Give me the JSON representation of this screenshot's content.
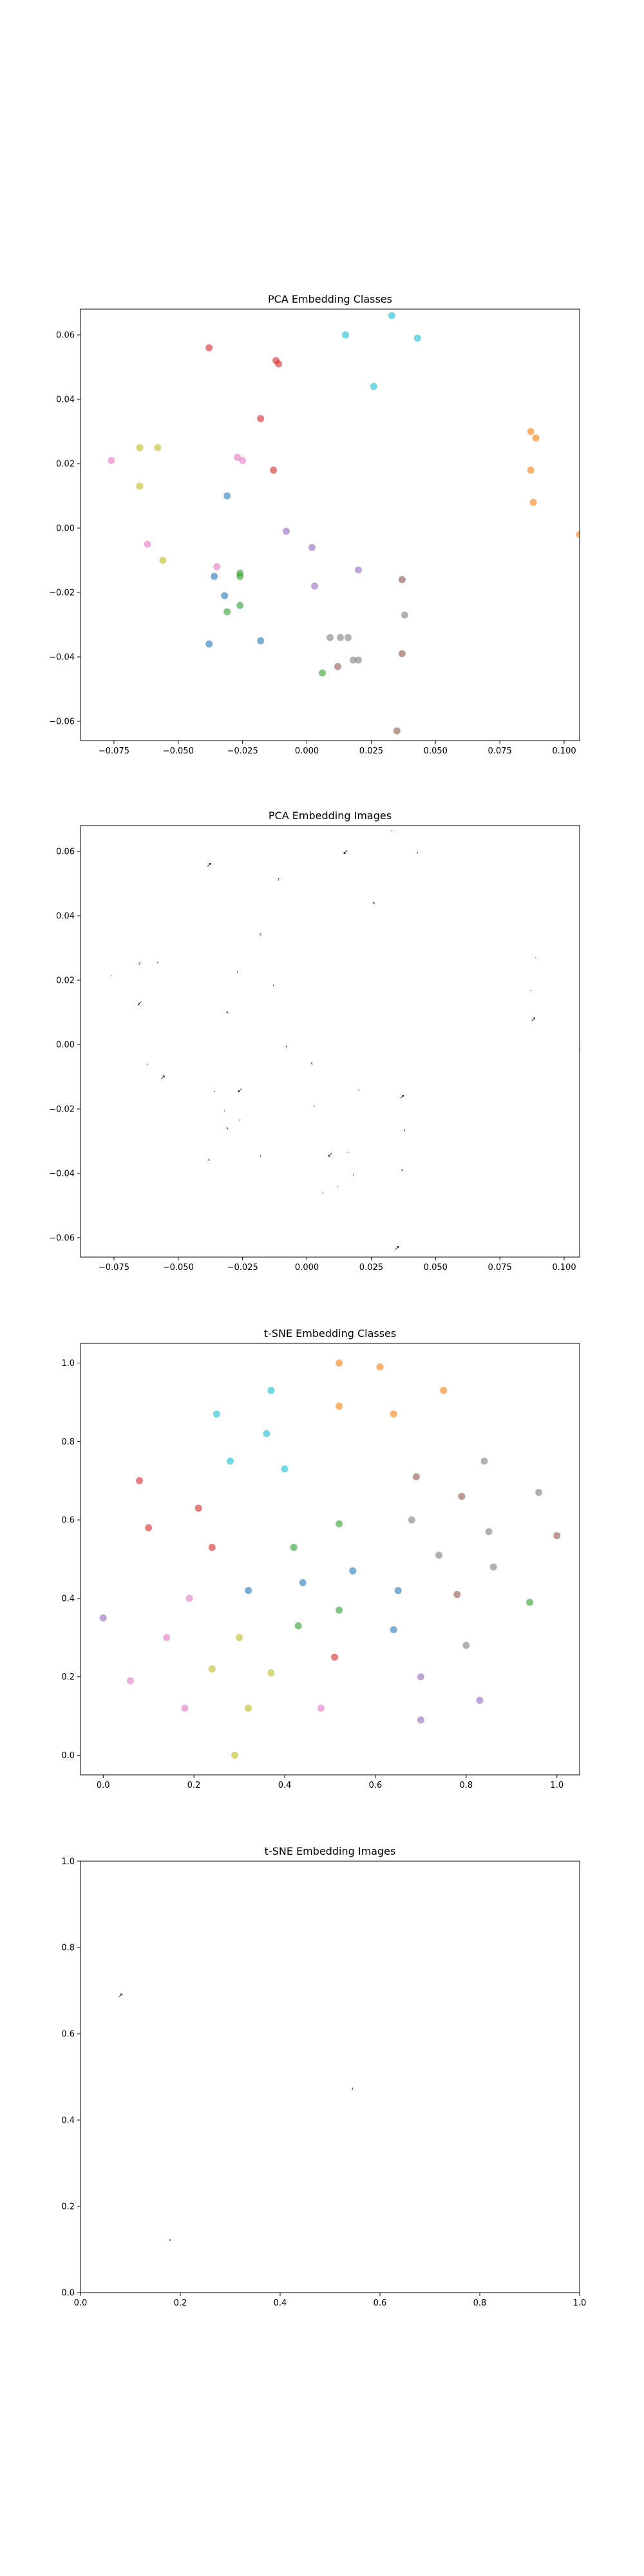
{
  "chart_data": [
    {
      "type": "scatter",
      "title": "PCA Embedding Classes",
      "xlim": [
        -0.088,
        0.106
      ],
      "ylim": [
        -0.066,
        0.068
      ],
      "xticks": [
        -0.075,
        -0.05,
        -0.025,
        0.0,
        0.025,
        0.05,
        0.075,
        0.1
      ],
      "xtick_labels": [
        "−0.075",
        "−0.050",
        "−0.025",
        "0.000",
        "0.025",
        "0.050",
        "0.075",
        "0.100"
      ],
      "yticks": [
        -0.06,
        -0.04,
        -0.02,
        0.0,
        0.02,
        0.04,
        0.06
      ],
      "ytick_labels": [
        "−0.06",
        "−0.04",
        "−0.02",
        "0.00",
        "0.02",
        "0.04",
        "0.06"
      ],
      "grid": false,
      "points": [
        {
          "x": -0.038,
          "y": 0.056,
          "color": "#d62728"
        },
        {
          "x": -0.012,
          "y": 0.052,
          "color": "#d62728"
        },
        {
          "x": -0.011,
          "y": 0.051,
          "color": "#d62728"
        },
        {
          "x": -0.018,
          "y": 0.034,
          "color": "#d62728"
        },
        {
          "x": -0.013,
          "y": 0.018,
          "color": "#d62728"
        },
        {
          "x": 0.015,
          "y": 0.06,
          "color": "#17becf"
        },
        {
          "x": 0.033,
          "y": 0.066,
          "color": "#17becf"
        },
        {
          "x": 0.043,
          "y": 0.059,
          "color": "#17becf"
        },
        {
          "x": 0.026,
          "y": 0.044,
          "color": "#17becf"
        },
        {
          "x": 0.087,
          "y": 0.03,
          "color": "#ff7f0e"
        },
        {
          "x": 0.089,
          "y": 0.028,
          "color": "#ff7f0e"
        },
        {
          "x": 0.087,
          "y": 0.018,
          "color": "#ff7f0e"
        },
        {
          "x": 0.088,
          "y": 0.008,
          "color": "#ff7f0e"
        },
        {
          "x": 0.106,
          "y": -0.002,
          "color": "#ff7f0e"
        },
        {
          "x": -0.065,
          "y": 0.025,
          "color": "#bcbd22"
        },
        {
          "x": -0.058,
          "y": 0.025,
          "color": "#bcbd22"
        },
        {
          "x": -0.065,
          "y": 0.013,
          "color": "#bcbd22"
        },
        {
          "x": -0.056,
          "y": -0.01,
          "color": "#bcbd22"
        },
        {
          "x": -0.076,
          "y": 0.021,
          "color": "#e377c2"
        },
        {
          "x": -0.027,
          "y": 0.022,
          "color": "#e377c2"
        },
        {
          "x": -0.025,
          "y": 0.021,
          "color": "#e377c2"
        },
        {
          "x": -0.062,
          "y": -0.005,
          "color": "#e377c2"
        },
        {
          "x": -0.035,
          "y": -0.012,
          "color": "#e377c2"
        },
        {
          "x": -0.031,
          "y": 0.01,
          "color": "#1f77b4"
        },
        {
          "x": -0.036,
          "y": -0.015,
          "color": "#1f77b4"
        },
        {
          "x": -0.032,
          "y": -0.021,
          "color": "#1f77b4"
        },
        {
          "x": -0.038,
          "y": -0.036,
          "color": "#1f77b4"
        },
        {
          "x": -0.018,
          "y": -0.035,
          "color": "#1f77b4"
        },
        {
          "x": -0.026,
          "y": -0.014,
          "color": "#2ca02c"
        },
        {
          "x": -0.026,
          "y": -0.015,
          "color": "#2ca02c"
        },
        {
          "x": -0.031,
          "y": -0.026,
          "color": "#2ca02c"
        },
        {
          "x": -0.026,
          "y": -0.024,
          "color": "#2ca02c"
        },
        {
          "x": 0.006,
          "y": -0.045,
          "color": "#2ca02c"
        },
        {
          "x": -0.008,
          "y": -0.001,
          "color": "#9467bd"
        },
        {
          "x": 0.002,
          "y": -0.006,
          "color": "#9467bd"
        },
        {
          "x": 0.003,
          "y": -0.018,
          "color": "#9467bd"
        },
        {
          "x": 0.02,
          "y": -0.013,
          "color": "#9467bd"
        },
        {
          "x": 0.037,
          "y": -0.016,
          "color": "#8c564b"
        },
        {
          "x": 0.037,
          "y": -0.039,
          "color": "#8c564b"
        },
        {
          "x": 0.012,
          "y": -0.043,
          "color": "#8c564b"
        },
        {
          "x": 0.035,
          "y": -0.063,
          "color": "#8c564b"
        },
        {
          "x": 0.009,
          "y": -0.034,
          "color": "#7f7f7f"
        },
        {
          "x": 0.013,
          "y": -0.034,
          "color": "#7f7f7f"
        },
        {
          "x": 0.016,
          "y": -0.034,
          "color": "#7f7f7f"
        },
        {
          "x": 0.018,
          "y": -0.041,
          "color": "#7f7f7f"
        },
        {
          "x": 0.02,
          "y": -0.041,
          "color": "#7f7f7f"
        },
        {
          "x": 0.038,
          "y": -0.027,
          "color": "#7f7f7f"
        }
      ]
    },
    {
      "type": "scatter",
      "title": "PCA Embedding Images",
      "xlim": [
        -0.088,
        0.106
      ],
      "ylim": [
        -0.066,
        0.068
      ],
      "xticks": [
        -0.075,
        -0.05,
        -0.025,
        0.0,
        0.025,
        0.05,
        0.075,
        0.1
      ],
      "xtick_labels": [
        "−0.075",
        "−0.050",
        "−0.025",
        "0.000",
        "0.025",
        "0.050",
        "0.075",
        "0.100"
      ],
      "yticks": [
        -0.06,
        -0.04,
        -0.02,
        0.0,
        0.02,
        0.04,
        0.06
      ],
      "ytick_labels": [
        "−0.06",
        "−0.04",
        "−0.02",
        "0.00",
        "0.02",
        "0.04",
        "0.06"
      ],
      "grid": false,
      "points": [
        {
          "x": -0.038,
          "y": 0.056
        },
        {
          "x": -0.011,
          "y": 0.051
        },
        {
          "x": -0.018,
          "y": 0.034
        },
        {
          "x": -0.013,
          "y": 0.018
        },
        {
          "x": 0.015,
          "y": 0.06
        },
        {
          "x": 0.033,
          "y": 0.066
        },
        {
          "x": 0.043,
          "y": 0.059
        },
        {
          "x": 0.026,
          "y": 0.044
        },
        {
          "x": 0.089,
          "y": 0.028
        },
        {
          "x": 0.087,
          "y": 0.018
        },
        {
          "x": 0.088,
          "y": 0.008
        },
        {
          "x": 0.106,
          "y": -0.002
        },
        {
          "x": -0.065,
          "y": 0.025
        },
        {
          "x": -0.058,
          "y": 0.025
        },
        {
          "x": -0.065,
          "y": 0.013
        },
        {
          "x": -0.076,
          "y": 0.021
        },
        {
          "x": -0.027,
          "y": 0.022
        },
        {
          "x": -0.031,
          "y": 0.01
        },
        {
          "x": -0.088,
          "y": 0.0
        },
        {
          "x": -0.062,
          "y": -0.005
        },
        {
          "x": -0.056,
          "y": -0.01
        },
        {
          "x": -0.008,
          "y": -0.001
        },
        {
          "x": 0.002,
          "y": -0.006
        },
        {
          "x": -0.036,
          "y": -0.015
        },
        {
          "x": -0.026,
          "y": -0.014
        },
        {
          "x": -0.032,
          "y": -0.021
        },
        {
          "x": -0.026,
          "y": -0.024
        },
        {
          "x": -0.031,
          "y": -0.026
        },
        {
          "x": 0.003,
          "y": -0.018
        },
        {
          "x": 0.02,
          "y": -0.013
        },
        {
          "x": 0.037,
          "y": -0.016
        },
        {
          "x": 0.038,
          "y": -0.027
        },
        {
          "x": -0.038,
          "y": -0.036
        },
        {
          "x": -0.018,
          "y": -0.035
        },
        {
          "x": 0.009,
          "y": -0.034
        },
        {
          "x": 0.016,
          "y": -0.034
        },
        {
          "x": 0.018,
          "y": -0.041
        },
        {
          "x": 0.037,
          "y": -0.039
        },
        {
          "x": 0.012,
          "y": -0.043
        },
        {
          "x": 0.006,
          "y": -0.045
        },
        {
          "x": 0.035,
          "y": -0.063
        }
      ]
    },
    {
      "type": "scatter",
      "title": "t-SNE Embedding Classes",
      "xlim": [
        -0.05,
        1.05
      ],
      "ylim": [
        -0.05,
        1.05
      ],
      "xticks": [
        0.0,
        0.2,
        0.4,
        0.6,
        0.8,
        1.0
      ],
      "xtick_labels": [
        "0.0",
        "0.2",
        "0.4",
        "0.6",
        "0.8",
        "1.0"
      ],
      "yticks": [
        0.0,
        0.2,
        0.4,
        0.6,
        0.8,
        1.0
      ],
      "ytick_labels": [
        "0.0",
        "0.2",
        "0.4",
        "0.6",
        "0.8",
        "1.0"
      ],
      "grid": false,
      "points": [
        {
          "x": 0.52,
          "y": 1.0,
          "color": "#ff7f0e"
        },
        {
          "x": 0.61,
          "y": 0.99,
          "color": "#ff7f0e"
        },
        {
          "x": 0.75,
          "y": 0.93,
          "color": "#ff7f0e"
        },
        {
          "x": 0.52,
          "y": 0.89,
          "color": "#ff7f0e"
        },
        {
          "x": 0.64,
          "y": 0.87,
          "color": "#ff7f0e"
        },
        {
          "x": 0.25,
          "y": 0.87,
          "color": "#17becf"
        },
        {
          "x": 0.37,
          "y": 0.93,
          "color": "#17becf"
        },
        {
          "x": 0.36,
          "y": 0.82,
          "color": "#17becf"
        },
        {
          "x": 0.28,
          "y": 0.75,
          "color": "#17becf"
        },
        {
          "x": 0.4,
          "y": 0.73,
          "color": "#17becf"
        },
        {
          "x": 0.08,
          "y": 0.7,
          "color": "#d62728"
        },
        {
          "x": 0.1,
          "y": 0.58,
          "color": "#d62728"
        },
        {
          "x": 0.21,
          "y": 0.63,
          "color": "#d62728"
        },
        {
          "x": 0.24,
          "y": 0.53,
          "color": "#d62728"
        },
        {
          "x": 0.51,
          "y": 0.25,
          "color": "#d62728"
        },
        {
          "x": 0.69,
          "y": 0.71,
          "color": "#8c564b"
        },
        {
          "x": 0.79,
          "y": 0.66,
          "color": "#8c564b"
        },
        {
          "x": 1.0,
          "y": 0.56,
          "color": "#8c564b"
        },
        {
          "x": 0.78,
          "y": 0.41,
          "color": "#8c564b"
        },
        {
          "x": 0.84,
          "y": 0.75,
          "color": "#7f7f7f"
        },
        {
          "x": 0.96,
          "y": 0.67,
          "color": "#7f7f7f"
        },
        {
          "x": 0.68,
          "y": 0.6,
          "color": "#7f7f7f"
        },
        {
          "x": 0.85,
          "y": 0.57,
          "color": "#7f7f7f"
        },
        {
          "x": 0.74,
          "y": 0.51,
          "color": "#7f7f7f"
        },
        {
          "x": 0.86,
          "y": 0.48,
          "color": "#7f7f7f"
        },
        {
          "x": 0.8,
          "y": 0.28,
          "color": "#7f7f7f"
        },
        {
          "x": 0.52,
          "y": 0.59,
          "color": "#2ca02c"
        },
        {
          "x": 0.42,
          "y": 0.53,
          "color": "#2ca02c"
        },
        {
          "x": 0.52,
          "y": 0.37,
          "color": "#2ca02c"
        },
        {
          "x": 0.43,
          "y": 0.33,
          "color": "#2ca02c"
        },
        {
          "x": 0.94,
          "y": 0.39,
          "color": "#2ca02c"
        },
        {
          "x": 0.55,
          "y": 0.47,
          "color": "#1f77b4"
        },
        {
          "x": 0.44,
          "y": 0.44,
          "color": "#1f77b4"
        },
        {
          "x": 0.32,
          "y": 0.42,
          "color": "#1f77b4"
        },
        {
          "x": 0.65,
          "y": 0.42,
          "color": "#1f77b4"
        },
        {
          "x": 0.64,
          "y": 0.32,
          "color": "#1f77b4"
        },
        {
          "x": 0.0,
          "y": 0.35,
          "color": "#9467bd"
        },
        {
          "x": 0.7,
          "y": 0.2,
          "color": "#9467bd"
        },
        {
          "x": 0.7,
          "y": 0.09,
          "color": "#9467bd"
        },
        {
          "x": 0.83,
          "y": 0.14,
          "color": "#9467bd"
        },
        {
          "x": 0.19,
          "y": 0.4,
          "color": "#e377c2"
        },
        {
          "x": 0.14,
          "y": 0.3,
          "color": "#e377c2"
        },
        {
          "x": 0.06,
          "y": 0.19,
          "color": "#e377c2"
        },
        {
          "x": 0.18,
          "y": 0.12,
          "color": "#e377c2"
        },
        {
          "x": 0.48,
          "y": 0.12,
          "color": "#e377c2"
        },
        {
          "x": 0.3,
          "y": 0.3,
          "color": "#bcbd22"
        },
        {
          "x": 0.24,
          "y": 0.22,
          "color": "#bcbd22"
        },
        {
          "x": 0.37,
          "y": 0.21,
          "color": "#bcbd22"
        },
        {
          "x": 0.32,
          "y": 0.12,
          "color": "#bcbd22"
        },
        {
          "x": 0.29,
          "y": 0.0,
          "color": "#bcbd22"
        }
      ]
    },
    {
      "type": "scatter",
      "title": "t-SNE Embedding Images",
      "xlim": [
        0.0,
        1.0
      ],
      "ylim": [
        0.0,
        1.0
      ],
      "xticks": [
        0.0,
        0.2,
        0.4,
        0.6,
        0.8,
        1.0
      ],
      "xtick_labels": [
        "0.0",
        "0.2",
        "0.4",
        "0.6",
        "0.8",
        "1.0"
      ],
      "yticks": [
        0.0,
        0.2,
        0.4,
        0.6,
        0.8,
        1.0
      ],
      "ytick_labels": [
        "0.0",
        "0.2",
        "0.4",
        "0.6",
        "0.8",
        "1.0"
      ],
      "grid": false,
      "points": [
        {
          "x": 0.08,
          "y": 0.69
        },
        {
          "x": 0.545,
          "y": 0.47
        },
        {
          "x": 0.18,
          "y": 0.12
        }
      ]
    }
  ]
}
